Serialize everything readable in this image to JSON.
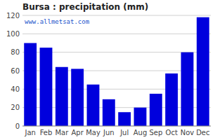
{
  "chart_data": {
    "type": "bar",
    "title": "Bursa : precipitation (mm)",
    "categories": [
      "Jan",
      "Feb",
      "Mar",
      "Apr",
      "May",
      "Jun",
      "Jul",
      "Aug",
      "Sep",
      "Oct",
      "Nov",
      "Dec"
    ],
    "values": [
      90,
      85,
      64,
      62,
      45,
      29,
      15,
      20,
      35,
      57,
      80,
      118
    ],
    "color": "#0000dd",
    "ylim": [
      0,
      120
    ],
    "yticks": [
      0,
      20,
      40,
      60,
      80,
      100,
      120
    ],
    "grid": true,
    "annotations": [
      "www.allmetsat.com"
    ]
  }
}
